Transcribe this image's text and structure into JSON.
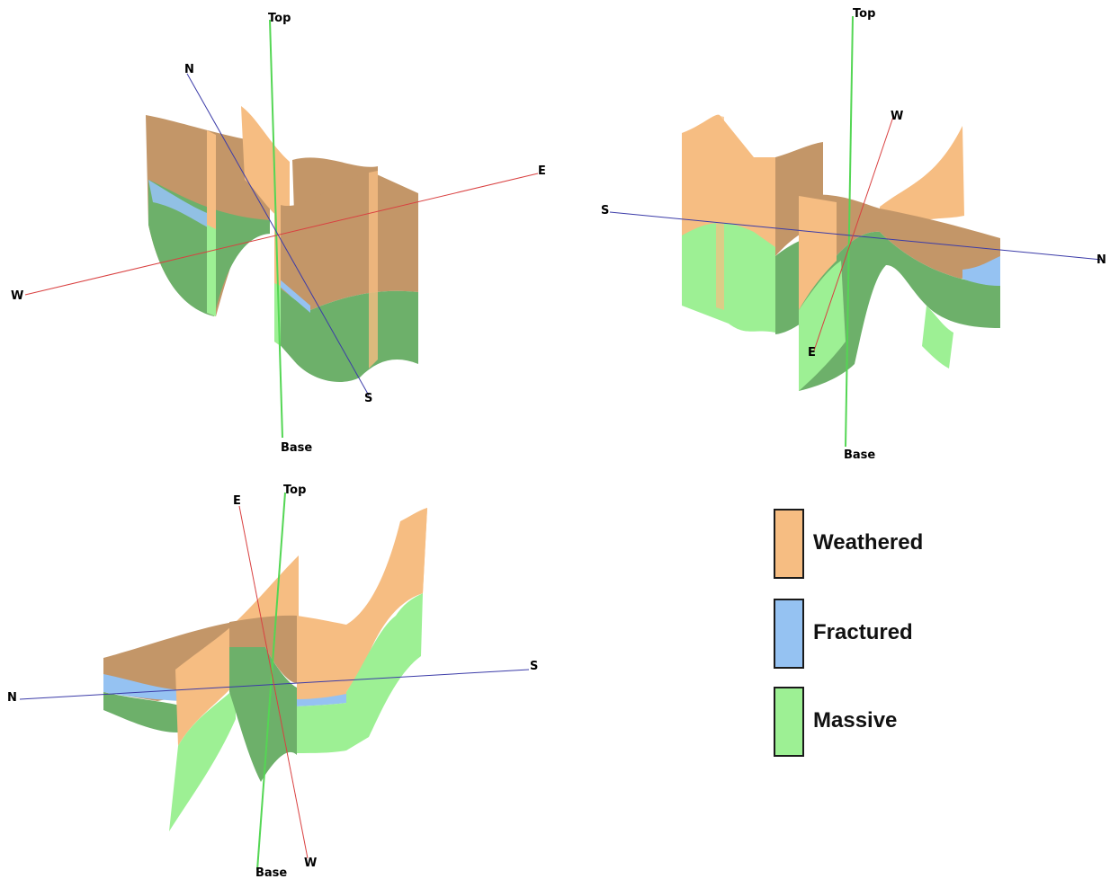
{
  "colors": {
    "weathered": "#f6bd82",
    "weathered_dark": "#c39668",
    "fractured": "#95c2f2",
    "massive": "#9df094",
    "massive_dark": "#6db06a",
    "axis_green": "#54d654",
    "axis_red": "#d94040",
    "axis_blue": "#3b3ba8"
  },
  "views": [
    {
      "labels": {
        "top": "Top",
        "base": "Base",
        "north": "N",
        "south": "S",
        "east": "E",
        "west": "W"
      }
    },
    {
      "labels": {
        "top": "Top",
        "base": "Base",
        "north": "N",
        "south": "S",
        "east": "E",
        "west": "W"
      }
    },
    {
      "labels": {
        "top": "Top",
        "base": "Base",
        "north": "N",
        "south": "S",
        "east": "E",
        "west": "W"
      }
    }
  ],
  "legend": [
    {
      "label": "Weathered",
      "color": "#f6bd82"
    },
    {
      "label": "Fractured",
      "color": "#95c2f2"
    },
    {
      "label": "Massive",
      "color": "#9df094"
    }
  ]
}
